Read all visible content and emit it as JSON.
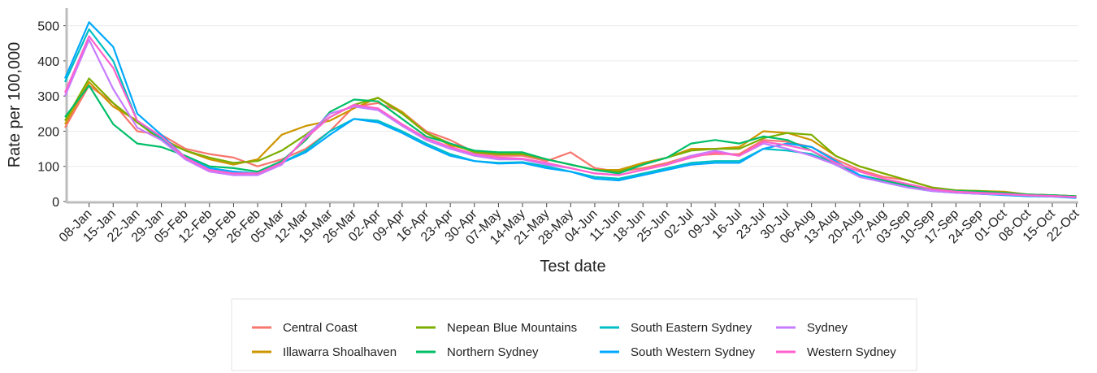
{
  "chart_data": {
    "type": "line",
    "x_label": "Test date",
    "y_label": "Rate per 100,000",
    "categories": [
      null,
      "08-Jan",
      "15-Jan",
      "22-Jan",
      "29-Jan",
      "05-Feb",
      "12-Feb",
      "19-Feb",
      "26-Feb",
      "05-Mar",
      "12-Mar",
      "19-Mar",
      "26-Mar",
      "02-Apr",
      "09-Apr",
      "16-Apr",
      "23-Apr",
      "30-Apr",
      "07-May",
      "14-May",
      "21-May",
      "28-May",
      "04-Jun",
      "11-Jun",
      "18-Jun",
      "25-Jun",
      "02-Jul",
      "09-Jul",
      "16-Jul",
      "23-Jul",
      "30-Jul",
      "06-Aug",
      "13-Aug",
      "20-Aug",
      "27-Aug",
      "03-Sep",
      "10-Sep",
      "17-Sep",
      "24-Sep",
      "01-Oct",
      "08-Oct",
      "15-Oct",
      "22-Oct"
    ],
    "series": [
      {
        "name": "Central Coast",
        "color": "#F8766D",
        "values": [
          210,
          330,
          280,
          200,
          190,
          150,
          135,
          125,
          100,
          120,
          150,
          200,
          270,
          280,
          255,
          200,
          175,
          140,
          130,
          130,
          115,
          140,
          95,
          85,
          95,
          110,
          130,
          135,
          135,
          175,
          170,
          155,
          120,
          90,
          70,
          60,
          40,
          30,
          28,
          25,
          20,
          18,
          15
        ]
      },
      {
        "name": "Illawarra Shoalhaven",
        "color": "#CD9600",
        "values": [
          220,
          340,
          270,
          230,
          180,
          145,
          120,
          105,
          120,
          190,
          215,
          230,
          265,
          295,
          255,
          195,
          160,
          145,
          135,
          135,
          120,
          105,
          90,
          90,
          110,
          125,
          150,
          150,
          155,
          200,
          195,
          175,
          130,
          100,
          80,
          60,
          40,
          32,
          30,
          28,
          20,
          18,
          15
        ]
      },
      {
        "name": "Nepean Blue Mountains",
        "color": "#7CAE00",
        "values": [
          230,
          350,
          280,
          225,
          175,
          145,
          125,
          110,
          115,
          145,
          190,
          240,
          275,
          295,
          250,
          195,
          165,
          140,
          135,
          135,
          120,
          105,
          90,
          85,
          105,
          125,
          145,
          150,
          150,
          180,
          195,
          190,
          130,
          100,
          80,
          60,
          40,
          32,
          30,
          25,
          20,
          18,
          15
        ]
      },
      {
        "name": "Northern Sydney",
        "color": "#00BE67",
        "values": [
          240,
          330,
          220,
          165,
          155,
          130,
          100,
          95,
          85,
          115,
          175,
          255,
          290,
          285,
          235,
          185,
          165,
          145,
          140,
          140,
          120,
          105,
          90,
          80,
          105,
          125,
          165,
          175,
          165,
          185,
          175,
          145,
          105,
          75,
          60,
          45,
          35,
          30,
          28,
          25,
          20,
          18,
          15
        ]
      },
      {
        "name": "South Eastern Sydney",
        "color": "#00BFC4",
        "values": [
          340,
          490,
          400,
          230,
          180,
          120,
          95,
          85,
          80,
          110,
          145,
          200,
          235,
          230,
          200,
          165,
          135,
          115,
          110,
          112,
          100,
          85,
          70,
          65,
          80,
          95,
          110,
          115,
          115,
          150,
          145,
          135,
          105,
          70,
          55,
          40,
          30,
          25,
          22,
          20,
          17,
          15,
          12
        ]
      },
      {
        "name": "South Western Sydney",
        "color": "#00A9FF",
        "values": [
          350,
          510,
          440,
          250,
          190,
          125,
          95,
          85,
          80,
          110,
          140,
          190,
          235,
          225,
          195,
          160,
          130,
          115,
          108,
          110,
          95,
          85,
          65,
          60,
          75,
          90,
          105,
          110,
          110,
          150,
          165,
          155,
          115,
          75,
          55,
          40,
          30,
          25,
          22,
          18,
          15,
          14,
          10
        ]
      },
      {
        "name": "Sydney",
        "color": "#C77CFF",
        "values": [
          300,
          460,
          320,
          210,
          175,
          120,
          85,
          75,
          75,
          105,
          185,
          250,
          270,
          260,
          215,
          175,
          150,
          130,
          120,
          120,
          105,
          95,
          80,
          75,
          90,
          105,
          130,
          145,
          130,
          165,
          150,
          130,
          105,
          70,
          55,
          40,
          30,
          25,
          22,
          20,
          17,
          15,
          12
        ]
      },
      {
        "name": "Western Sydney",
        "color": "#FF61CC",
        "values": [
          310,
          470,
          380,
          230,
          185,
          125,
          90,
          80,
          80,
          110,
          180,
          240,
          275,
          265,
          220,
          180,
          155,
          135,
          125,
          122,
          110,
          95,
          80,
          75,
          90,
          105,
          125,
          140,
          130,
          170,
          160,
          145,
          110,
          85,
          65,
          50,
          35,
          28,
          25,
          22,
          18,
          16,
          13
        ]
      }
    ],
    "ylim": [
      0,
      550
    ],
    "yticks": [
      0,
      100,
      200,
      300,
      400,
      500
    ],
    "grid": true,
    "legend": "bottom"
  }
}
